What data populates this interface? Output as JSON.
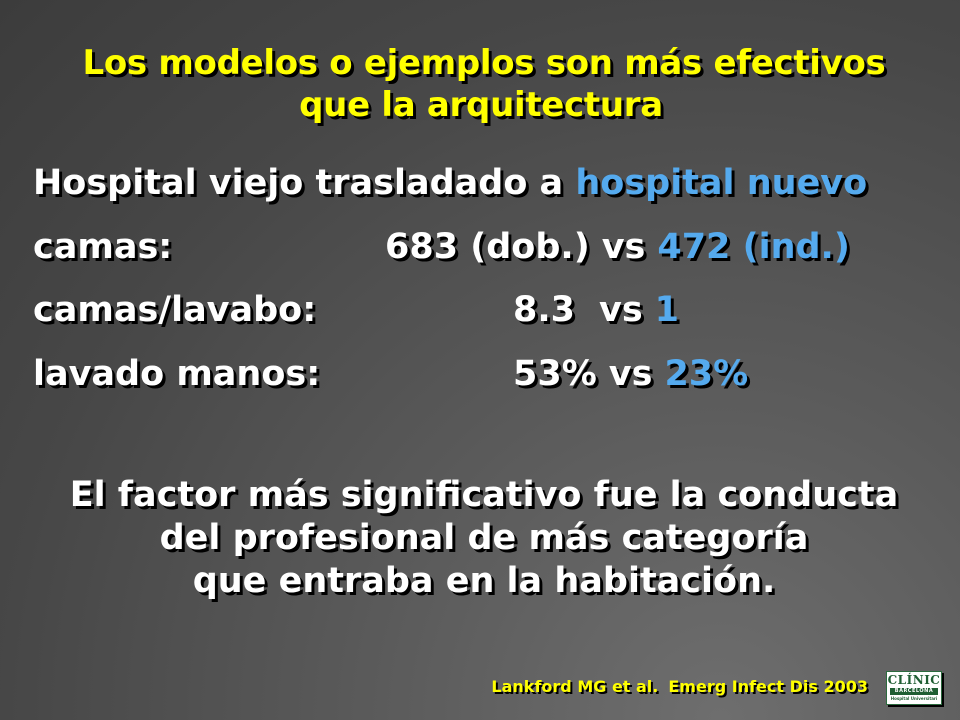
{
  "title": {
    "line1": "Los modelos o ejemplos son más efectivos",
    "line2": "que la arquitectura"
  },
  "heading": {
    "prefix": "Hospital viejo trasladado a",
    "highlight": "hospital nuevo"
  },
  "rows": [
    {
      "label": "camas:",
      "old_value": "683 (dob.)",
      "vs": "vs",
      "new_value": "472 (ind.)"
    },
    {
      "label": "camas/lavabo:",
      "old_value": "8.3",
      "vs": "vs",
      "new_value": "1"
    },
    {
      "label": "lavado manos:",
      "old_value": "53%",
      "vs": "vs",
      "new_value": "23%"
    }
  ],
  "conclusion": {
    "line1": "El factor más significativo fue la conducta",
    "line2": "del profesional de más categoría",
    "line3": "que entraba en la habitación."
  },
  "citation": {
    "authors": "Lankford MG et al.",
    "journal": "Emerg Infect Dis 2003"
  },
  "logo": {
    "name": "CLÍNIC",
    "band": "BARCELONA",
    "subtitle": "Hospital Universitari"
  },
  "colors": {
    "title": "#ffff00",
    "highlight": "#55aaee",
    "text": "#ffffff",
    "logo_green": "#1f5e33"
  }
}
